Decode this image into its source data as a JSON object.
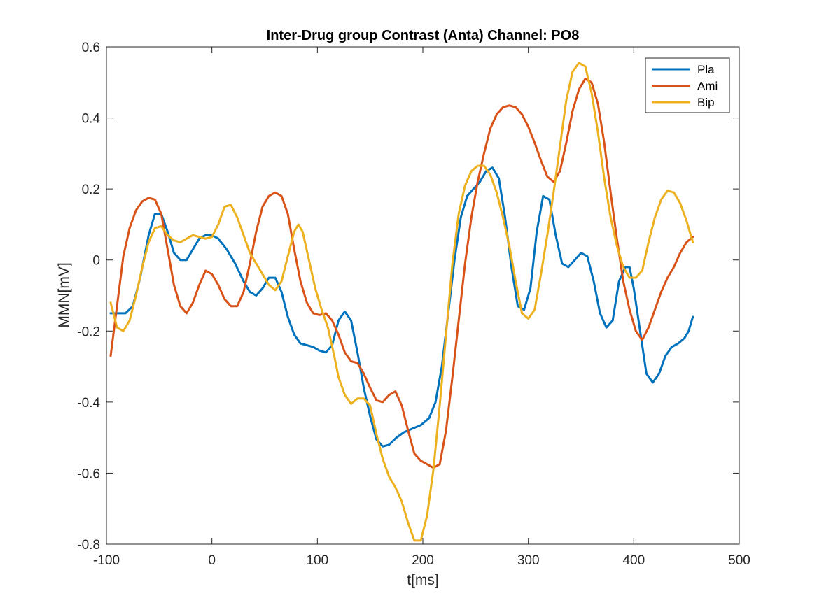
{
  "chart_data": {
    "type": "line",
    "title": "Inter-Drug group Contrast (Anta) Channel: PO8",
    "xlabel": "t[ms]",
    "ylabel": "MMN[mV]",
    "xlim": [
      -100,
      500
    ],
    "ylim": [
      -0.8,
      0.6
    ],
    "xticks": [
      "-100",
      "0",
      "100",
      "200",
      "300",
      "400",
      "500"
    ],
    "yticks": [
      "-0.8",
      "-0.6",
      "-0.4",
      "-0.2",
      "0",
      "0.2",
      "0.4",
      "0.6"
    ],
    "grid": false,
    "legend_position": "top-right",
    "series": [
      {
        "name": "Pla",
        "color": "#0072BD",
        "points": [
          [
            -96,
            -0.15
          ],
          [
            -90,
            -0.15
          ],
          [
            -82,
            -0.15
          ],
          [
            -75,
            -0.13
          ],
          [
            -68,
            -0.05
          ],
          [
            -60,
            0.07
          ],
          [
            -54,
            0.13
          ],
          [
            -48,
            0.13
          ],
          [
            -42,
            0.08
          ],
          [
            -36,
            0.02
          ],
          [
            -30,
            0.0
          ],
          [
            -24,
            0.0
          ],
          [
            -18,
            0.03
          ],
          [
            -12,
            0.06
          ],
          [
            -6,
            0.07
          ],
          [
            0,
            0.07
          ],
          [
            6,
            0.06
          ],
          [
            14,
            0.03
          ],
          [
            22,
            -0.01
          ],
          [
            30,
            -0.06
          ],
          [
            36,
            -0.09
          ],
          [
            42,
            -0.1
          ],
          [
            48,
            -0.08
          ],
          [
            54,
            -0.05
          ],
          [
            60,
            -0.05
          ],
          [
            66,
            -0.09
          ],
          [
            72,
            -0.16
          ],
          [
            78,
            -0.21
          ],
          [
            84,
            -0.235
          ],
          [
            90,
            -0.24
          ],
          [
            96,
            -0.245
          ],
          [
            102,
            -0.255
          ],
          [
            108,
            -0.26
          ],
          [
            114,
            -0.24
          ],
          [
            120,
            -0.17
          ],
          [
            126,
            -0.145
          ],
          [
            132,
            -0.17
          ],
          [
            138,
            -0.26
          ],
          [
            144,
            -0.36
          ],
          [
            150,
            -0.44
          ],
          [
            156,
            -0.505
          ],
          [
            162,
            -0.525
          ],
          [
            168,
            -0.52
          ],
          [
            175,
            -0.5
          ],
          [
            182,
            -0.485
          ],
          [
            190,
            -0.475
          ],
          [
            198,
            -0.465
          ],
          [
            206,
            -0.445
          ],
          [
            212,
            -0.4
          ],
          [
            218,
            -0.3
          ],
          [
            224,
            -0.15
          ],
          [
            230,
            0.0
          ],
          [
            236,
            0.12
          ],
          [
            242,
            0.18
          ],
          [
            248,
            0.2
          ],
          [
            254,
            0.22
          ],
          [
            260,
            0.25
          ],
          [
            266,
            0.26
          ],
          [
            272,
            0.23
          ],
          [
            278,
            0.12
          ],
          [
            284,
            -0.02
          ],
          [
            290,
            -0.13
          ],
          [
            296,
            -0.14
          ],
          [
            302,
            -0.08
          ],
          [
            308,
            0.08
          ],
          [
            314,
            0.18
          ],
          [
            320,
            0.17
          ],
          [
            326,
            0.07
          ],
          [
            332,
            -0.01
          ],
          [
            338,
            -0.02
          ],
          [
            344,
            0.0
          ],
          [
            350,
            0.02
          ],
          [
            356,
            0.01
          ],
          [
            362,
            -0.06
          ],
          [
            368,
            -0.15
          ],
          [
            374,
            -0.19
          ],
          [
            380,
            -0.17
          ],
          [
            386,
            -0.06
          ],
          [
            392,
            -0.02
          ],
          [
            396,
            -0.02
          ],
          [
            400,
            -0.08
          ],
          [
            406,
            -0.2
          ],
          [
            412,
            -0.32
          ],
          [
            418,
            -0.345
          ],
          [
            424,
            -0.32
          ],
          [
            430,
            -0.27
          ],
          [
            436,
            -0.245
          ],
          [
            442,
            -0.235
          ],
          [
            448,
            -0.22
          ],
          [
            452,
            -0.2
          ],
          [
            456,
            -0.16
          ]
        ]
      },
      {
        "name": "Ami",
        "color": "#D95319",
        "points": [
          [
            -96,
            -0.27
          ],
          [
            -90,
            -0.13
          ],
          [
            -84,
            0.01
          ],
          [
            -78,
            0.09
          ],
          [
            -72,
            0.14
          ],
          [
            -66,
            0.165
          ],
          [
            -60,
            0.175
          ],
          [
            -54,
            0.17
          ],
          [
            -48,
            0.13
          ],
          [
            -42,
            0.03
          ],
          [
            -36,
            -0.07
          ],
          [
            -30,
            -0.13
          ],
          [
            -24,
            -0.15
          ],
          [
            -18,
            -0.12
          ],
          [
            -12,
            -0.07
          ],
          [
            -6,
            -0.03
          ],
          [
            0,
            -0.04
          ],
          [
            6,
            -0.07
          ],
          [
            12,
            -0.11
          ],
          [
            18,
            -0.13
          ],
          [
            24,
            -0.13
          ],
          [
            30,
            -0.09
          ],
          [
            36,
            -0.01
          ],
          [
            42,
            0.08
          ],
          [
            48,
            0.15
          ],
          [
            54,
            0.18
          ],
          [
            60,
            0.19
          ],
          [
            66,
            0.18
          ],
          [
            72,
            0.13
          ],
          [
            78,
            0.03
          ],
          [
            84,
            -0.06
          ],
          [
            90,
            -0.12
          ],
          [
            96,
            -0.15
          ],
          [
            102,
            -0.155
          ],
          [
            108,
            -0.15
          ],
          [
            114,
            -0.17
          ],
          [
            120,
            -0.21
          ],
          [
            126,
            -0.26
          ],
          [
            132,
            -0.285
          ],
          [
            138,
            -0.29
          ],
          [
            144,
            -0.32
          ],
          [
            150,
            -0.36
          ],
          [
            156,
            -0.395
          ],
          [
            162,
            -0.4
          ],
          [
            168,
            -0.38
          ],
          [
            174,
            -0.37
          ],
          [
            180,
            -0.41
          ],
          [
            186,
            -0.48
          ],
          [
            192,
            -0.545
          ],
          [
            198,
            -0.565
          ],
          [
            204,
            -0.575
          ],
          [
            210,
            -0.585
          ],
          [
            216,
            -0.575
          ],
          [
            222,
            -0.48
          ],
          [
            228,
            -0.33
          ],
          [
            234,
            -0.17
          ],
          [
            240,
            -0.01
          ],
          [
            246,
            0.12
          ],
          [
            252,
            0.22
          ],
          [
            258,
            0.3
          ],
          [
            264,
            0.37
          ],
          [
            270,
            0.41
          ],
          [
            276,
            0.43
          ],
          [
            282,
            0.435
          ],
          [
            288,
            0.43
          ],
          [
            294,
            0.41
          ],
          [
            300,
            0.375
          ],
          [
            306,
            0.33
          ],
          [
            312,
            0.28
          ],
          [
            318,
            0.235
          ],
          [
            324,
            0.22
          ],
          [
            330,
            0.25
          ],
          [
            336,
            0.33
          ],
          [
            342,
            0.42
          ],
          [
            348,
            0.48
          ],
          [
            354,
            0.51
          ],
          [
            360,
            0.5
          ],
          [
            366,
            0.44
          ],
          [
            372,
            0.33
          ],
          [
            378,
            0.19
          ],
          [
            384,
            0.06
          ],
          [
            390,
            -0.06
          ],
          [
            396,
            -0.14
          ],
          [
            402,
            -0.2
          ],
          [
            408,
            -0.225
          ],
          [
            414,
            -0.19
          ],
          [
            420,
            -0.14
          ],
          [
            426,
            -0.09
          ],
          [
            432,
            -0.05
          ],
          [
            438,
            -0.02
          ],
          [
            444,
            0.02
          ],
          [
            450,
            0.05
          ],
          [
            456,
            0.065
          ]
        ]
      },
      {
        "name": "Bip",
        "color": "#EDB120",
        "points": [
          [
            -96,
            -0.12
          ],
          [
            -90,
            -0.19
          ],
          [
            -84,
            -0.2
          ],
          [
            -78,
            -0.17
          ],
          [
            -72,
            -0.1
          ],
          [
            -66,
            -0.02
          ],
          [
            -60,
            0.05
          ],
          [
            -54,
            0.09
          ],
          [
            -48,
            0.095
          ],
          [
            -42,
            0.07
          ],
          [
            -36,
            0.055
          ],
          [
            -30,
            0.05
          ],
          [
            -24,
            0.06
          ],
          [
            -18,
            0.07
          ],
          [
            -12,
            0.065
          ],
          [
            -6,
            0.06
          ],
          [
            0,
            0.065
          ],
          [
            6,
            0.1
          ],
          [
            12,
            0.15
          ],
          [
            18,
            0.155
          ],
          [
            24,
            0.12
          ],
          [
            30,
            0.07
          ],
          [
            36,
            0.02
          ],
          [
            42,
            -0.01
          ],
          [
            48,
            -0.04
          ],
          [
            54,
            -0.07
          ],
          [
            60,
            -0.085
          ],
          [
            66,
            -0.06
          ],
          [
            72,
            0.01
          ],
          [
            78,
            0.08
          ],
          [
            82,
            0.1
          ],
          [
            86,
            0.08
          ],
          [
            92,
            0.0
          ],
          [
            98,
            -0.08
          ],
          [
            104,
            -0.14
          ],
          [
            110,
            -0.19
          ],
          [
            116,
            -0.27
          ],
          [
            120,
            -0.33
          ],
          [
            126,
            -0.38
          ],
          [
            132,
            -0.405
          ],
          [
            138,
            -0.39
          ],
          [
            144,
            -0.39
          ],
          [
            150,
            -0.41
          ],
          [
            156,
            -0.49
          ],
          [
            162,
            -0.56
          ],
          [
            168,
            -0.61
          ],
          [
            174,
            -0.64
          ],
          [
            180,
            -0.68
          ],
          [
            186,
            -0.74
          ],
          [
            192,
            -0.79
          ],
          [
            198,
            -0.79
          ],
          [
            204,
            -0.72
          ],
          [
            210,
            -0.59
          ],
          [
            216,
            -0.41
          ],
          [
            222,
            -0.21
          ],
          [
            228,
            -0.01
          ],
          [
            234,
            0.13
          ],
          [
            240,
            0.21
          ],
          [
            246,
            0.25
          ],
          [
            252,
            0.265
          ],
          [
            258,
            0.265
          ],
          [
            264,
            0.24
          ],
          [
            270,
            0.19
          ],
          [
            276,
            0.12
          ],
          [
            282,
            0.04
          ],
          [
            288,
            -0.06
          ],
          [
            294,
            -0.15
          ],
          [
            300,
            -0.165
          ],
          [
            306,
            -0.14
          ],
          [
            312,
            -0.04
          ],
          [
            318,
            0.07
          ],
          [
            324,
            0.19
          ],
          [
            330,
            0.32
          ],
          [
            336,
            0.45
          ],
          [
            342,
            0.53
          ],
          [
            348,
            0.555
          ],
          [
            354,
            0.545
          ],
          [
            360,
            0.47
          ],
          [
            366,
            0.36
          ],
          [
            372,
            0.23
          ],
          [
            378,
            0.12
          ],
          [
            384,
            0.04
          ],
          [
            390,
            -0.02
          ],
          [
            396,
            -0.05
          ],
          [
            402,
            -0.05
          ],
          [
            408,
            -0.03
          ],
          [
            414,
            0.05
          ],
          [
            420,
            0.12
          ],
          [
            426,
            0.17
          ],
          [
            432,
            0.195
          ],
          [
            438,
            0.19
          ],
          [
            444,
            0.16
          ],
          [
            450,
            0.11
          ],
          [
            456,
            0.05
          ]
        ]
      }
    ]
  }
}
